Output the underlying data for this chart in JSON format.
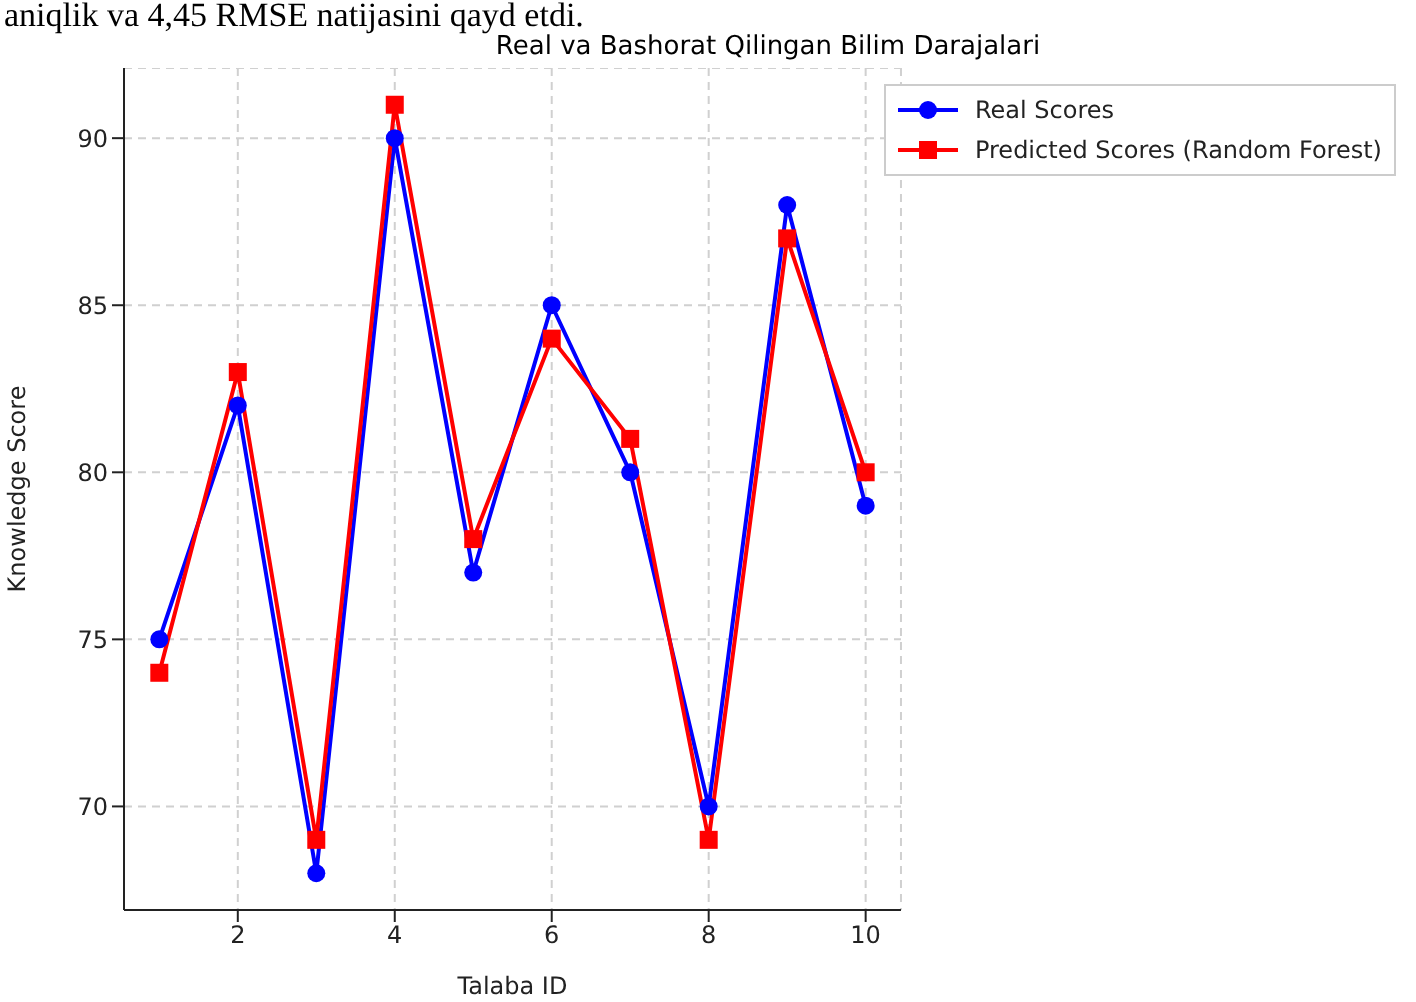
{
  "chart_data": {
    "type": "line",
    "title": "Real va Bashorat Qilingan Bilim Darajalari",
    "xlabel": "Talaba ID",
    "ylabel": "Knowledge Score",
    "annotations": [
      "aniqlik va 4,45 RMSE natijasini qayd etdi."
    ],
    "x": [
      1,
      2,
      3,
      4,
      5,
      6,
      7,
      8,
      9,
      10
    ],
    "series": [
      {
        "name": "Real Scores",
        "color": "#0000ff",
        "marker": "circle",
        "values": [
          75,
          82,
          68,
          90,
          77,
          85,
          80,
          70,
          88,
          79
        ]
      },
      {
        "name": "Predicted Scores (Random Forest)",
        "color": "#ff0000",
        "marker": "square",
        "values": [
          74,
          83,
          69,
          91,
          78,
          84,
          81,
          69,
          87,
          80
        ]
      }
    ],
    "xlim": [
      0.55,
      10.45
    ],
    "xticks": [
      2,
      4,
      6,
      8,
      10
    ],
    "ylim": [
      66.9,
      92.1
    ],
    "yticks": [
      70,
      75,
      80,
      85,
      90
    ],
    "grid": true,
    "legend": "top right",
    "line_style": "solid"
  }
}
